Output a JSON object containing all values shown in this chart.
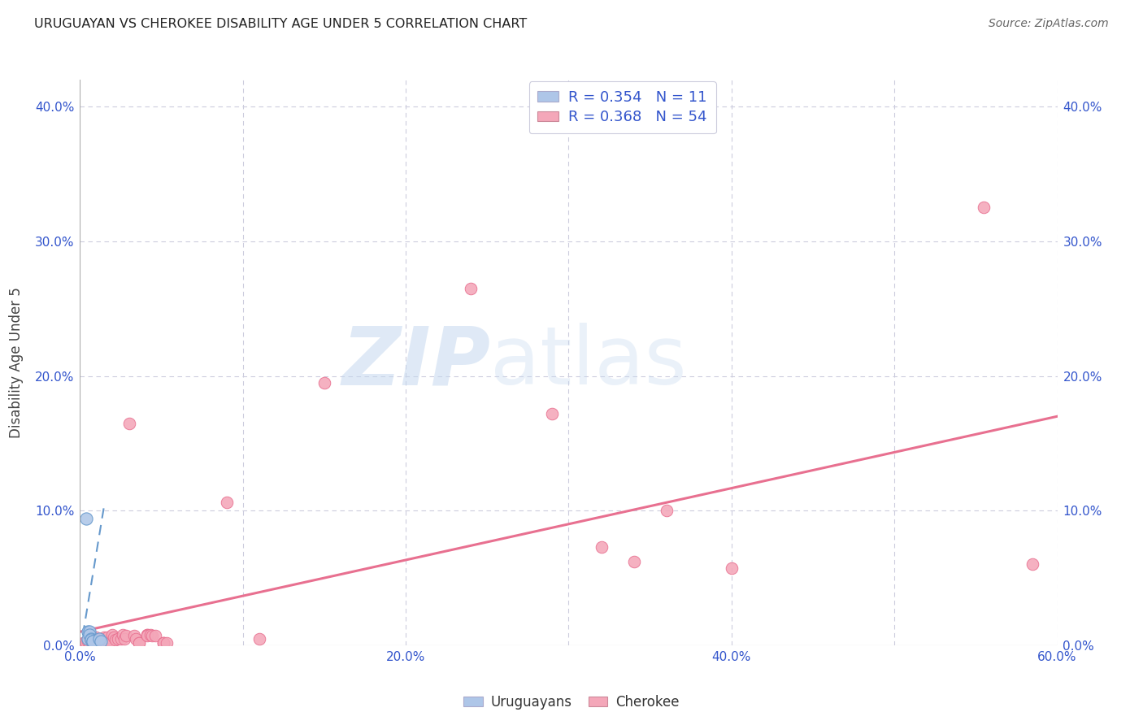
{
  "title": "URUGUAYAN VS CHEROKEE DISABILITY AGE UNDER 5 CORRELATION CHART",
  "source": "Source: ZipAtlas.com",
  "ylabel": "Disability Age Under 5",
  "xlabel_uruguayan": "Uruguayans",
  "xlabel_cherokee": "Cherokee",
  "xlim": [
    0.0,
    0.6
  ],
  "ylim": [
    0.0,
    0.42
  ],
  "xtick_labels": [
    "0.0%",
    "",
    "20.0%",
    "",
    "40.0%",
    "",
    "60.0%"
  ],
  "xtick_values": [
    0.0,
    0.1,
    0.2,
    0.3,
    0.4,
    0.5,
    0.6
  ],
  "ytick_labels": [
    "0.0%",
    "10.0%",
    "20.0%",
    "30.0%",
    "40.0%"
  ],
  "ytick_values": [
    0.0,
    0.1,
    0.2,
    0.3,
    0.4
  ],
  "uruguayan_R": 0.354,
  "uruguayan_N": 11,
  "cherokee_R": 0.368,
  "cherokee_N": 54,
  "uruguayan_color": "#aec6e8",
  "cherokee_color": "#f4a7b9",
  "uruguayan_line_color": "#6699cc",
  "cherokee_line_color": "#e87090",
  "legend_color": "#3355cc",
  "title_color": "#222222",
  "grid_color": "#ccccdd",
  "uruguayan_points": [
    [
      0.004,
      0.094
    ],
    [
      0.005,
      0.01
    ],
    [
      0.005,
      0.005
    ],
    [
      0.006,
      0.01
    ],
    [
      0.006,
      0.008
    ],
    [
      0.007,
      0.005
    ],
    [
      0.007,
      0.004
    ],
    [
      0.008,
      0.003
    ],
    [
      0.008,
      0.003
    ],
    [
      0.012,
      0.005
    ],
    [
      0.013,
      0.003
    ]
  ],
  "cherokee_points": [
    [
      0.002,
      0.002
    ],
    [
      0.003,
      0.002
    ],
    [
      0.004,
      0.002
    ],
    [
      0.005,
      0.003
    ],
    [
      0.006,
      0.002
    ],
    [
      0.007,
      0.004
    ],
    [
      0.007,
      0.007
    ],
    [
      0.008,
      0.002
    ],
    [
      0.009,
      0.004
    ],
    [
      0.01,
      0.006
    ],
    [
      0.01,
      0.003
    ],
    [
      0.011,
      0.002
    ],
    [
      0.012,
      0.005
    ],
    [
      0.013,
      0.005
    ],
    [
      0.014,
      0.002
    ],
    [
      0.015,
      0.002
    ],
    [
      0.015,
      0.006
    ],
    [
      0.016,
      0.002
    ],
    [
      0.017,
      0.006
    ],
    [
      0.018,
      0.002
    ],
    [
      0.02,
      0.008
    ],
    [
      0.021,
      0.006
    ],
    [
      0.022,
      0.004
    ],
    [
      0.023,
      0.005
    ],
    [
      0.025,
      0.005
    ],
    [
      0.026,
      0.008
    ],
    [
      0.027,
      0.005
    ],
    [
      0.028,
      0.007
    ],
    [
      0.03,
      0.165
    ],
    [
      0.033,
      0.007
    ],
    [
      0.034,
      0.005
    ],
    [
      0.036,
      0.002
    ],
    [
      0.036,
      0.002
    ],
    [
      0.041,
      0.008
    ],
    [
      0.041,
      0.008
    ],
    [
      0.041,
      0.007
    ],
    [
      0.043,
      0.008
    ],
    [
      0.044,
      0.007
    ],
    [
      0.046,
      0.007
    ],
    [
      0.051,
      0.002
    ],
    [
      0.051,
      0.002
    ],
    [
      0.051,
      0.002
    ],
    [
      0.053,
      0.002
    ],
    [
      0.09,
      0.106
    ],
    [
      0.11,
      0.005
    ],
    [
      0.15,
      0.195
    ],
    [
      0.24,
      0.265
    ],
    [
      0.29,
      0.172
    ],
    [
      0.32,
      0.073
    ],
    [
      0.34,
      0.062
    ],
    [
      0.36,
      0.1
    ],
    [
      0.4,
      0.057
    ],
    [
      0.555,
      0.325
    ],
    [
      0.585,
      0.06
    ]
  ],
  "cherokee_trendline_x": [
    0.0,
    0.6
  ],
  "cherokee_trendline_y": [
    0.01,
    0.17
  ],
  "uruguayan_trendline_x": [
    0.0,
    0.015
  ],
  "uruguayan_trendline_y": [
    -0.005,
    0.105
  ],
  "watermark_zip": "ZIP",
  "watermark_atlas": "atlas",
  "watermark_color_zip": "#c5d8ef",
  "watermark_color_atlas": "#c5d8ef"
}
